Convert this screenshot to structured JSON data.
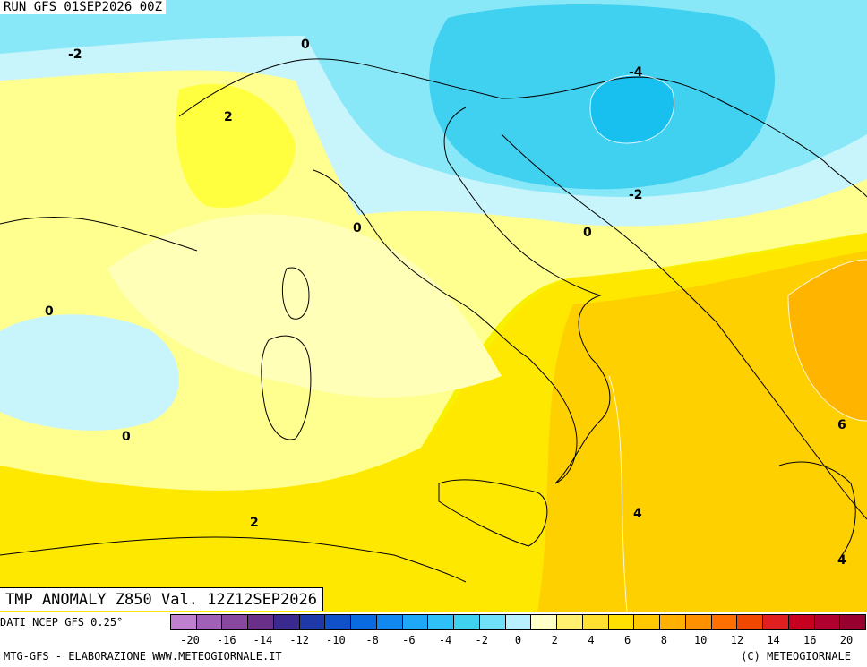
{
  "header": {
    "run": "RUN GFS 01SEP2026 00Z",
    "field": "TMP ANOMALY Z850 Val. 12Z12SEP2026"
  },
  "source": "DATI NCEP GFS 0.25°",
  "footer": {
    "left": "MTG-GFS - ELABORAZIONE WWW.METEOGIORNALE.IT",
    "right": "(C) METEOGIORNALE"
  },
  "colorbar": {
    "colors": [
      "#c080d0",
      "#a060b8",
      "#8848a0",
      "#6a2f88",
      "#3a2a90",
      "#1f3aa8",
      "#1050c8",
      "#0a6ae0",
      "#1088f0",
      "#20a8f8",
      "#30c0f8",
      "#40d0f0",
      "#70e0f8",
      "#b8f0ff",
      "#ffffc8",
      "#fff070",
      "#ffe030",
      "#ffe000",
      "#ffc800",
      "#ffb000",
      "#ff9000",
      "#ff7000",
      "#f04800",
      "#e02020",
      "#c80020",
      "#b00030",
      "#980030"
    ],
    "ticks": [
      "-20",
      "-16",
      "-14",
      "-12",
      "-10",
      "-8",
      "-6",
      "-4",
      "-2",
      "0",
      "2",
      "4",
      "6",
      "8",
      "10",
      "12",
      "14",
      "16",
      "20"
    ]
  },
  "contour_labels": [
    {
      "text": "-2"
    },
    {
      "text": "0"
    },
    {
      "text": "2"
    },
    {
      "text": "-4"
    },
    {
      "text": "-2"
    },
    {
      "text": "0"
    },
    {
      "text": "0"
    },
    {
      "text": "0"
    },
    {
      "text": "0"
    },
    {
      "text": "2"
    },
    {
      "text": "4"
    },
    {
      "text": "6"
    },
    {
      "text": "4"
    }
  ]
}
